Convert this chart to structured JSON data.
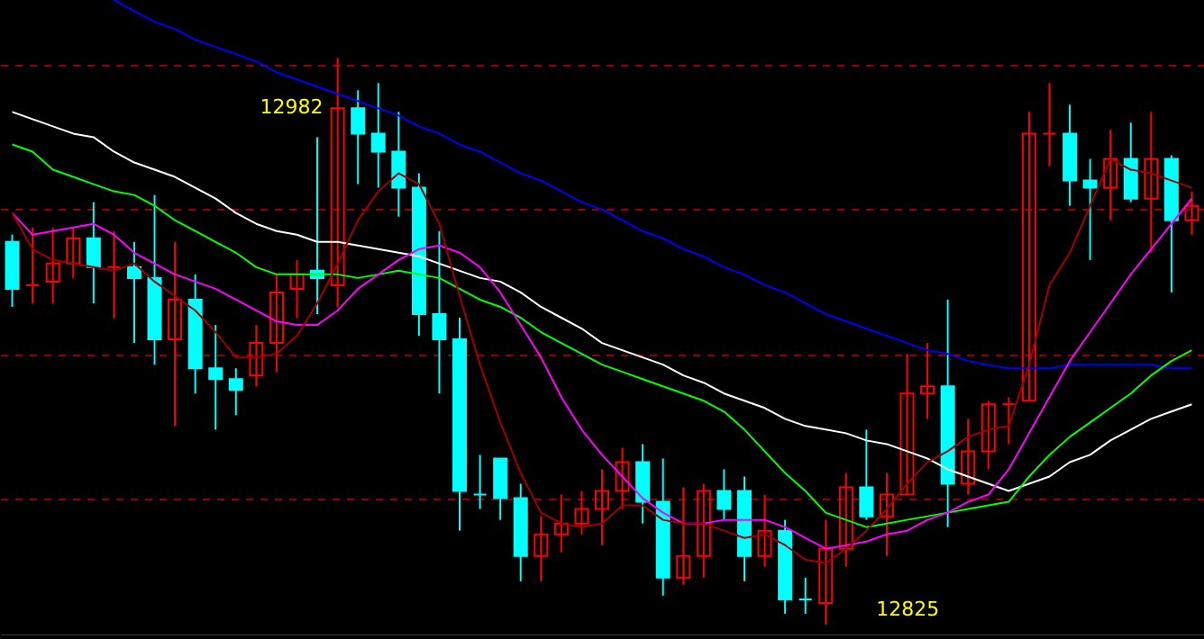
{
  "chart_data": {
    "type": "candlestick",
    "categories": [
      null,
      null,
      null,
      null,
      null,
      null,
      null,
      null,
      null,
      null,
      null,
      null,
      null,
      null,
      null,
      null,
      null,
      null,
      null,
      null,
      null,
      null,
      null,
      null,
      null,
      null,
      null,
      null,
      null,
      null,
      null,
      null,
      null,
      null,
      null,
      null,
      null,
      null,
      null,
      null,
      null,
      null,
      null,
      null,
      null,
      null,
      null,
      null,
      null,
      null,
      null,
      null,
      null,
      null,
      null,
      null,
      null,
      null,
      null
    ],
    "ohlc": [
      [
        12931,
        12933,
        12913,
        12918
      ],
      [
        12919,
        12935,
        12914,
        12919
      ],
      [
        12920,
        12935,
        12914,
        12925
      ],
      [
        12925,
        12935,
        12921,
        12932
      ],
      [
        12932,
        12942,
        12914,
        12924
      ],
      [
        12924,
        12934,
        12910,
        12924
      ],
      [
        12924,
        12931,
        12903,
        12921
      ],
      [
        12921,
        12944,
        12897,
        12904
      ],
      [
        12904,
        12931,
        12880,
        12915
      ],
      [
        12915,
        12922,
        12889,
        12896
      ],
      [
        12896,
        12908,
        12879,
        12893
      ],
      [
        12893,
        12896,
        12883,
        12890
      ],
      [
        12894,
        12908,
        12891,
        12903
      ],
      [
        12903,
        12922,
        12895,
        12917
      ],
      [
        12918,
        12926,
        12910,
        12922
      ],
      [
        12923,
        12960,
        12911,
        12921
      ],
      [
        12919,
        12982,
        12913,
        12968
      ],
      [
        12968,
        12973,
        12947,
        12961
      ],
      [
        12961,
        12975,
        12946,
        12956
      ],
      [
        12956,
        12967,
        12938,
        12946
      ],
      [
        12946,
        12950,
        12905,
        12911
      ],
      [
        12911,
        12934,
        12889,
        12904
      ],
      [
        12904,
        12910,
        12851,
        12862
      ],
      [
        12861,
        12872,
        12857,
        12861
      ],
      [
        12871,
        12871,
        12854,
        12860
      ],
      [
        12860,
        12864,
        12837,
        12844
      ],
      [
        12844,
        12855,
        12837,
        12850
      ],
      [
        12850,
        12861,
        12845,
        12853
      ],
      [
        12853,
        12862,
        12850,
        12857
      ],
      [
        12857,
        12868,
        12847,
        12862
      ],
      [
        12862,
        12874,
        12857,
        12870
      ],
      [
        12870,
        12875,
        12853,
        12859
      ],
      [
        12859,
        12871,
        12833,
        12838
      ],
      [
        12838,
        12863,
        12836,
        12844
      ],
      [
        12844,
        12864,
        12838,
        12862
      ],
      [
        12862,
        12868,
        12854,
        12857
      ],
      [
        12862,
        12866,
        12837,
        12844
      ],
      [
        12844,
        12861,
        12841,
        12851
      ],
      [
        12851,
        12854,
        12828,
        12832
      ],
      [
        12832,
        12838,
        12828,
        12832
      ],
      [
        12831,
        12854,
        12825,
        12846
      ],
      [
        12846,
        12867,
        12841,
        12863
      ],
      [
        12863,
        12879,
        12854,
        12855
      ],
      [
        12855,
        12867,
        12844,
        12861
      ],
      [
        12861,
        12900,
        12861,
        12889
      ],
      [
        12889,
        12903,
        12882,
        12891
      ],
      [
        12891,
        12915,
        12852,
        12864
      ],
      [
        12864,
        12882,
        12861,
        12873
      ],
      [
        12873,
        12887,
        12868,
        12886
      ],
      [
        12886,
        12888,
        12875,
        12886
      ],
      [
        12887,
        12967,
        12887,
        12961
      ],
      [
        12961,
        12975,
        12952,
        12961
      ],
      [
        12961,
        12969,
        12941,
        12948
      ],
      [
        12948,
        12954,
        12926,
        12946
      ],
      [
        12946,
        12962,
        12937,
        12954
      ],
      [
        12954,
        12964,
        12942,
        12943
      ],
      [
        12943,
        12967,
        12928,
        12954
      ],
      [
        12954,
        12955,
        12917,
        12937
      ],
      [
        12937,
        12945,
        12933,
        12941
      ]
    ],
    "colors": [
      "#00ffff",
      "#ff0000",
      "#ff0000",
      "#ff0000",
      "#00ffff",
      "#ff0000",
      "#00ffff",
      "#00ffff",
      "#ff0000",
      "#00ffff",
      "#00ffff",
      "#00ffff",
      "#ff0000",
      "#ff0000",
      "#ff0000",
      "#00ffff",
      "#ff0000",
      "#00ffff",
      "#00ffff",
      "#00ffff",
      "#00ffff",
      "#00ffff",
      "#00ffff",
      "#00ffff",
      "#00ffff",
      "#00ffff",
      "#ff0000",
      "#ff0000",
      "#ff0000",
      "#ff0000",
      "#ff0000",
      "#00ffff",
      "#00ffff",
      "#ff0000",
      "#ff0000",
      "#00ffff",
      "#00ffff",
      "#ff0000",
      "#00ffff",
      "#00ffff",
      "#ff0000",
      "#ff0000",
      "#00ffff",
      "#ff0000",
      "#ff0000",
      "#ff0000",
      "#00ffff",
      "#ff0000",
      "#ff0000",
      "#ff0000",
      "#ff0000",
      "#ff0000",
      "#00ffff",
      "#00ffff",
      "#ff0000",
      "#00ffff",
      "#ff0000",
      "#00ffff",
      "#ff0000"
    ],
    "series": [
      {
        "type": "line",
        "color": "#0000ff",
        "values": [
          null,
          null,
          null,
          null,
          null,
          12998,
          12995,
          12992,
          12990,
          12987,
          12985,
          12983,
          12981,
          12978,
          12976,
          12974,
          12972,
          12970,
          12968,
          12966,
          12963,
          12961,
          12958,
          12956,
          12953,
          12950,
          12948,
          12945,
          12942,
          12940,
          12937,
          12934,
          12932,
          12929,
          12927,
          12924,
          12922,
          12919,
          12917,
          12914,
          12911,
          12909,
          12907,
          12905,
          12903,
          12901,
          12900,
          12898,
          12897,
          12896,
          12896,
          12896,
          12897,
          12897,
          12897,
          12897,
          12897,
          12896,
          12896
        ]
      },
      {
        "type": "line",
        "color": "#ffffff",
        "values": [
          12967,
          12965,
          12963,
          12961,
          12960,
          12956,
          12953,
          12951,
          12949,
          12946,
          12943,
          12939,
          12936,
          12934,
          12933,
          12931,
          12931,
          12930,
          12929,
          12928,
          12927,
          12925,
          12923,
          12921,
          12920,
          12917,
          12913,
          12910,
          12907,
          12903,
          12901,
          12899,
          12897,
          12894,
          12892,
          12889,
          12887,
          12885,
          12882,
          12880,
          12879,
          12878,
          12876,
          12875,
          12873,
          12871,
          12868,
          12866,
          12864,
          12862,
          12864,
          12866,
          12870,
          12872,
          12876,
          12879,
          12882,
          12884,
          12886
        ]
      },
      {
        "type": "line",
        "color": "#00ff00",
        "values": [
          12958,
          12956,
          12951,
          12949,
          12947,
          12945,
          12944,
          12941,
          12937,
          12934,
          12931,
          12928,
          12924,
          12922,
          12922,
          12922,
          12922,
          12921,
          12922,
          12923,
          12922,
          12921,
          12918,
          12915,
          12913,
          12910,
          12906,
          12903,
          12900,
          12897,
          12895,
          12893,
          12891,
          12889,
          12887,
          12884,
          12879,
          12873,
          12867,
          12862,
          12856,
          12854,
          12852,
          12853,
          12854,
          12855,
          12856,
          12857,
          12858,
          12859,
          12866,
          12872,
          12877,
          12881,
          12885,
          12889,
          12894,
          12898,
          12901
        ]
      },
      {
        "type": "line",
        "color": "#ff00ff",
        "values": [
          12939,
          12933,
          12934,
          12935,
          12936,
          12933,
          12928,
          12925,
          12922,
          12920,
          12918,
          12915,
          12912,
          12909,
          12908,
          12908,
          12912,
          12918,
          12922,
          12926,
          12929,
          12930,
          12928,
          12924,
          12917,
          12908,
          12899,
          12888,
          12879,
          12872,
          12866,
          12860,
          12856,
          12853,
          12853,
          12854,
          12854,
          12854,
          12852,
          12849,
          12846,
          12847,
          12848,
          12850,
          12851,
          12854,
          12856,
          12859,
          12861,
          12868,
          12878,
          12888,
          12898,
          12906,
          12914,
          12922,
          12929,
          12936,
          12943
        ]
      },
      {
        "type": "line",
        "color": "#a00000",
        "values": [
          12939,
          12929,
          12926,
          12925,
          12924,
          12923,
          12925,
          12920,
          12916,
          12912,
          12906,
          12899,
          12899,
          12900,
          12905,
          12914,
          12925,
          12937,
          12945,
          12950,
          12947,
          12936,
          12916,
          12897,
          12881,
          12867,
          12856,
          12853,
          12852,
          12853,
          12858,
          12858,
          12854,
          12853,
          12853,
          12851,
          12849,
          12850,
          12847,
          12843,
          12842,
          12846,
          12851,
          12857,
          12864,
          12870,
          12873,
          12877,
          12879,
          12880,
          12897,
          12919,
          12928,
          12941,
          12954,
          12951,
          12950,
          12948,
          12946
        ]
      }
    ],
    "ylim": [
      12822,
      12998
    ],
    "yticks": [
      {
        "value": 12980,
        "label": null
      },
      {
        "value": 12940,
        "label": null
      },
      {
        "value": 12900,
        "label": null
      },
      {
        "value": 12860,
        "label": null
      }
    ],
    "grid": "y",
    "annotations": [
      "12982",
      "12825"
    ]
  }
}
